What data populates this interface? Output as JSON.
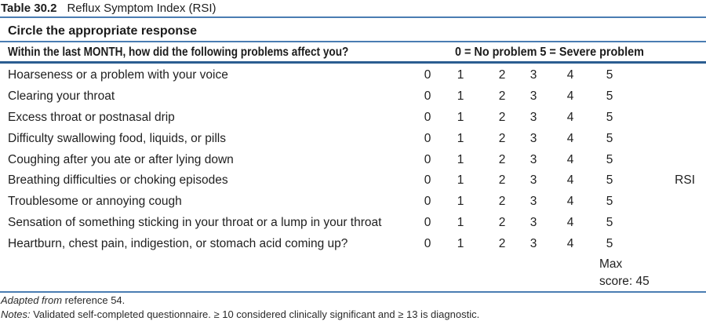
{
  "title": {
    "label": "Table 30.2",
    "text": "Reflux Symptom Index (RSI)"
  },
  "table": {
    "instruction": "Circle the appropriate response",
    "question_header": "Within the last MONTH, how did the following problems affect you?",
    "scale_header": "0 = No problem 5 = Severe problem",
    "scale_values": [
      "0",
      "1",
      "2",
      "3",
      "4",
      "5"
    ],
    "rows": [
      "Hoarseness or a problem with your voice",
      "Clearing your throat",
      "Excess throat or postnasal drip",
      "Difficulty swallowing food, liquids, or pills",
      "Coughing after you ate or after lying down",
      "Breathing difficulties or choking episodes",
      "Troublesome or annoying cough",
      "Sensation of something sticking in your throat or a lump in your throat",
      "Heartburn, chest pain, indigestion, or stomach acid coming up?"
    ],
    "rsi_label": "RSI",
    "rsi_row_index": 5,
    "max_score_line1": "Max",
    "max_score_line2": "score: 45"
  },
  "footer": {
    "adapted_italic": "Adapted from",
    "adapted_rest": " reference 54.",
    "notes_italic": "Notes:",
    "notes_rest": " Validated self-completed questionnaire. ≥ 10 considered clinically significant and ≥ 13 is diagnostic."
  },
  "colors": {
    "rule_blue": "#4a7db2",
    "rule_dark_blue": "#2b5d91"
  }
}
